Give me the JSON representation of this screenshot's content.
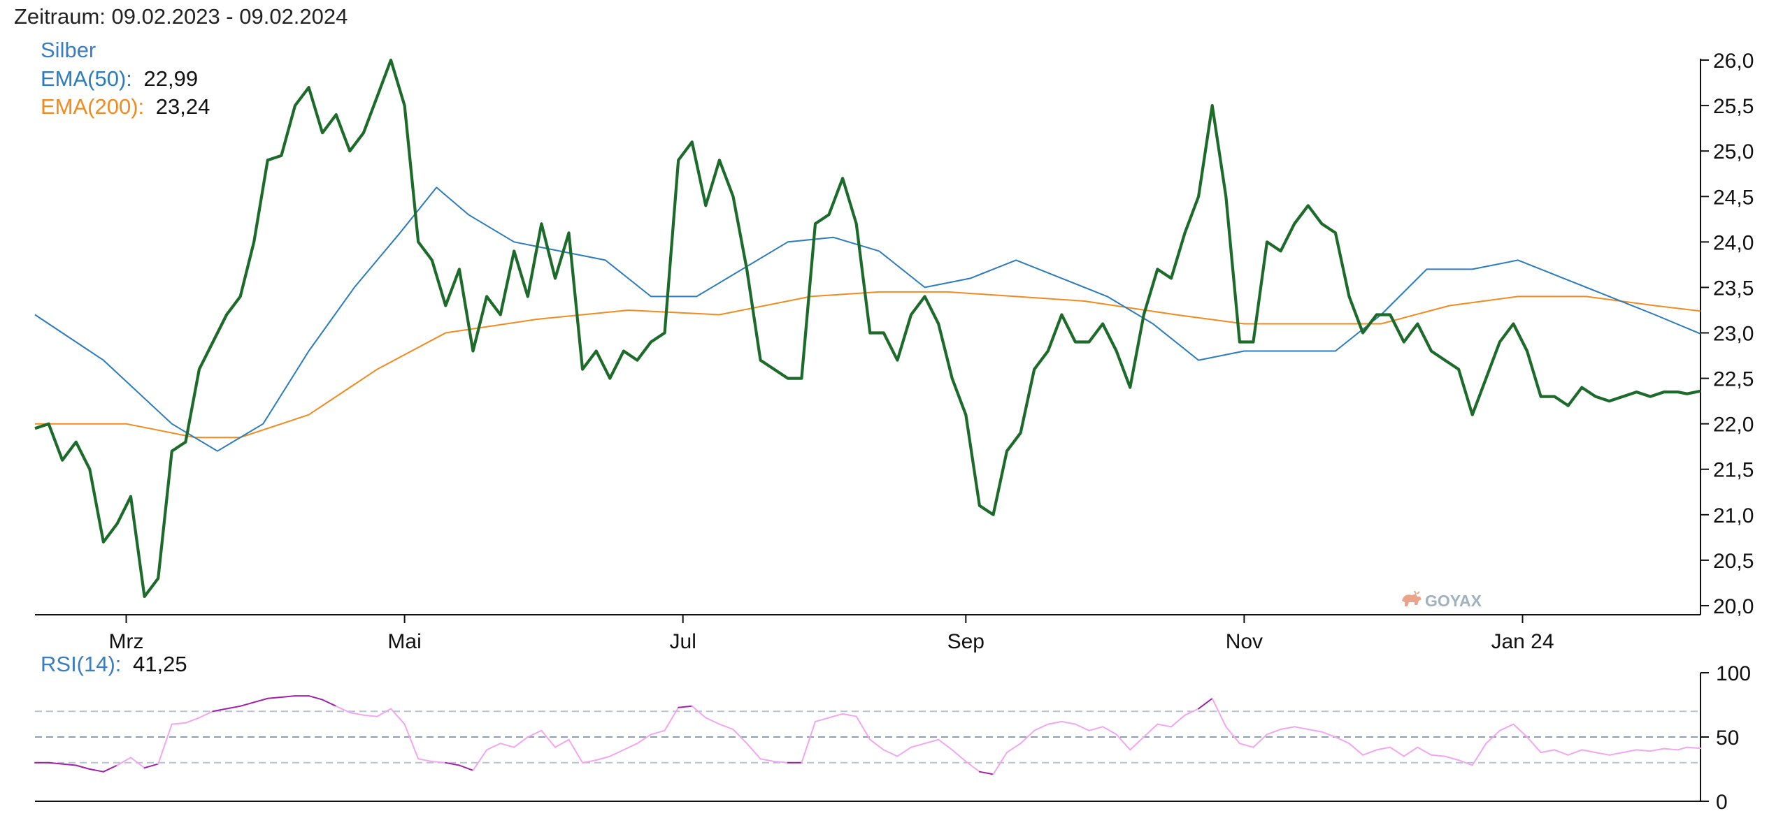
{
  "period_label": "Zeitraum: 09.02.2023 - 09.02.2024",
  "legend": {
    "instrument": "Silber",
    "ema50_label": "EMA(50):",
    "ema50_value": "22,99",
    "ema200_label": "EMA(200):",
    "ema200_value": "23,24",
    "rsi_label": "RSI(14):",
    "rsi_value": "41,25"
  },
  "watermark": "GOYAX",
  "colors": {
    "price": "#1c6b2a",
    "ema50": "#2b7bbf",
    "ema200": "#f28a1e",
    "rsi_normal": "#f3a6f0",
    "rsi_extreme": "#a020a8",
    "reference_line": "#b8c4d6",
    "instrument_label": "#3a7dc0"
  },
  "chart_data": [
    {
      "type": "line",
      "title": "Silber",
      "x_ticks": [
        "Mrz",
        "Mai",
        "Jul",
        "Sep",
        "Nov",
        "Jan 24"
      ],
      "y_ticks": [
        "20,0",
        "20,5",
        "21,0",
        "21,5",
        "22,0",
        "22,5",
        "23,0",
        "23,5",
        "24,0",
        "24,5",
        "25,0",
        "25,5",
        "26,0"
      ],
      "ylim": [
        19.9,
        26.2
      ],
      "x_domain": [
        0,
        365
      ],
      "x_tick_positions": [
        20,
        81,
        142,
        204,
        265,
        326
      ],
      "grid": false,
      "series": [
        {
          "name": "Silber",
          "x": [
            0,
            3,
            6,
            9,
            12,
            15,
            18,
            21,
            24,
            27,
            30,
            33,
            36,
            39,
            42,
            45,
            48,
            51,
            54,
            57,
            60,
            63,
            66,
            69,
            72,
            75,
            78,
            81,
            84,
            87,
            90,
            93,
            96,
            99,
            102,
            105,
            108,
            111,
            114,
            117,
            120,
            123,
            126,
            129,
            132,
            135,
            138,
            141,
            144,
            147,
            150,
            153,
            156,
            159,
            162,
            165,
            168,
            171,
            174,
            177,
            180,
            183,
            186,
            189,
            192,
            195,
            198,
            201,
            204,
            207,
            210,
            213,
            216,
            219,
            222,
            225,
            228,
            231,
            234,
            237,
            240,
            243,
            246,
            249,
            252,
            255,
            258,
            261,
            264,
            267,
            270,
            273,
            276,
            279,
            282,
            285,
            288,
            291,
            294,
            297,
            300,
            303,
            306,
            309,
            312,
            315,
            318,
            321,
            324,
            327,
            330,
            333,
            336,
            339,
            342,
            345,
            348,
            351,
            354,
            357,
            360,
            362,
            365
          ],
          "values": [
            21.95,
            22.0,
            21.6,
            21.8,
            21.5,
            20.7,
            20.9,
            21.2,
            20.1,
            20.3,
            21.7,
            21.8,
            22.6,
            22.9,
            23.2,
            23.4,
            24.0,
            24.9,
            24.95,
            25.5,
            25.7,
            25.2,
            25.4,
            25.0,
            25.2,
            25.6,
            26.0,
            25.5,
            24.0,
            23.8,
            23.3,
            23.7,
            22.8,
            23.4,
            23.2,
            23.9,
            23.4,
            24.2,
            23.6,
            24.1,
            22.6,
            22.8,
            22.5,
            22.8,
            22.7,
            22.9,
            23.0,
            24.9,
            25.1,
            24.4,
            24.9,
            24.5,
            23.7,
            22.7,
            22.6,
            22.5,
            22.5,
            24.2,
            24.3,
            24.7,
            24.2,
            23.0,
            23.0,
            22.7,
            23.2,
            23.4,
            23.1,
            22.5,
            22.1,
            21.1,
            21.0,
            21.7,
            21.9,
            22.6,
            22.8,
            23.2,
            22.9,
            22.9,
            23.1,
            22.8,
            22.4,
            23.2,
            23.7,
            23.6,
            24.1,
            24.5,
            25.5,
            24.5,
            22.9,
            22.9,
            24.0,
            23.9,
            24.2,
            24.4,
            24.2,
            24.1,
            23.4,
            23.0,
            23.2,
            23.2,
            22.9,
            23.1,
            22.8,
            22.7,
            22.6,
            22.1,
            22.5,
            22.9,
            23.1,
            22.8,
            22.3,
            22.3,
            22.2,
            22.4,
            22.3,
            22.25,
            22.3,
            22.35,
            22.3,
            22.35,
            22.35,
            22.33,
            22.36
          ]
        },
        {
          "name": "EMA(50)",
          "x": [
            0,
            15,
            30,
            40,
            50,
            60,
            70,
            80,
            88,
            95,
            105,
            115,
            125,
            135,
            145,
            155,
            165,
            175,
            185,
            195,
            205,
            215,
            225,
            235,
            245,
            255,
            265,
            275,
            285,
            295,
            305,
            315,
            325,
            335,
            345,
            355,
            365
          ],
          "values": [
            23.2,
            22.7,
            22.0,
            21.7,
            22.0,
            22.8,
            23.5,
            24.1,
            24.6,
            24.3,
            24.0,
            23.9,
            23.8,
            23.4,
            23.4,
            23.7,
            24.0,
            24.05,
            23.9,
            23.5,
            23.6,
            23.8,
            23.6,
            23.4,
            23.1,
            22.7,
            22.8,
            22.8,
            22.8,
            23.2,
            23.7,
            23.7,
            23.8,
            23.6,
            23.4,
            23.2,
            22.99
          ]
        },
        {
          "name": "EMA(200)",
          "x": [
            0,
            20,
            35,
            45,
            60,
            75,
            90,
            110,
            130,
            150,
            170,
            185,
            200,
            215,
            230,
            250,
            265,
            280,
            295,
            310,
            325,
            340,
            355,
            365
          ],
          "values": [
            22.0,
            22.0,
            21.85,
            21.85,
            22.1,
            22.6,
            23.0,
            23.15,
            23.25,
            23.2,
            23.4,
            23.45,
            23.45,
            23.4,
            23.35,
            23.2,
            23.1,
            23.1,
            23.1,
            23.3,
            23.4,
            23.4,
            23.3,
            23.24
          ]
        }
      ]
    },
    {
      "type": "line",
      "title": "RSI(14)",
      "y_ticks": [
        "0",
        "50",
        "100"
      ],
      "ylim": [
        0,
        100
      ],
      "reference_lines": [
        30,
        50,
        70
      ],
      "x_domain": [
        0,
        365
      ],
      "series": [
        {
          "name": "RSI(14)",
          "x": [
            0,
            3,
            6,
            9,
            12,
            15,
            18,
            21,
            24,
            27,
            30,
            33,
            36,
            39,
            42,
            45,
            48,
            51,
            54,
            57,
            60,
            63,
            66,
            69,
            72,
            75,
            78,
            81,
            84,
            87,
            90,
            93,
            96,
            99,
            102,
            105,
            108,
            111,
            114,
            117,
            120,
            123,
            126,
            129,
            132,
            135,
            138,
            141,
            144,
            147,
            150,
            153,
            156,
            159,
            162,
            165,
            168,
            171,
            174,
            177,
            180,
            183,
            186,
            189,
            192,
            195,
            198,
            201,
            204,
            207,
            210,
            213,
            216,
            219,
            222,
            225,
            228,
            231,
            234,
            237,
            240,
            243,
            246,
            249,
            252,
            255,
            258,
            261,
            264,
            267,
            270,
            273,
            276,
            279,
            282,
            285,
            288,
            291,
            294,
            297,
            300,
            303,
            306,
            309,
            312,
            315,
            318,
            321,
            324,
            327,
            330,
            333,
            336,
            339,
            342,
            345,
            348,
            351,
            354,
            357,
            360,
            362,
            365
          ],
          "values": [
            30,
            30,
            29,
            28,
            25,
            23,
            28,
            34,
            26,
            29,
            60,
            61,
            65,
            70,
            72,
            74,
            77,
            80,
            81,
            82,
            82,
            79,
            74,
            69,
            67,
            66,
            72,
            60,
            33,
            31,
            30,
            28,
            24,
            40,
            45,
            42,
            50,
            55,
            42,
            48,
            30,
            32,
            35,
            40,
            45,
            52,
            55,
            73,
            74,
            65,
            60,
            56,
            45,
            33,
            31,
            30,
            30,
            62,
            65,
            68,
            66,
            48,
            40,
            35,
            42,
            45,
            48,
            40,
            31,
            23,
            21,
            38,
            45,
            55,
            60,
            62,
            60,
            55,
            58,
            52,
            40,
            50,
            60,
            58,
            67,
            72,
            80,
            58,
            45,
            42,
            52,
            56,
            58,
            56,
            54,
            50,
            45,
            36,
            40,
            42,
            35,
            42,
            36,
            35,
            32,
            28,
            45,
            55,
            60,
            50,
            38,
            40,
            36,
            40,
            38,
            36,
            38,
            40,
            39,
            41,
            40,
            42,
            41.25
          ]
        }
      ]
    }
  ]
}
